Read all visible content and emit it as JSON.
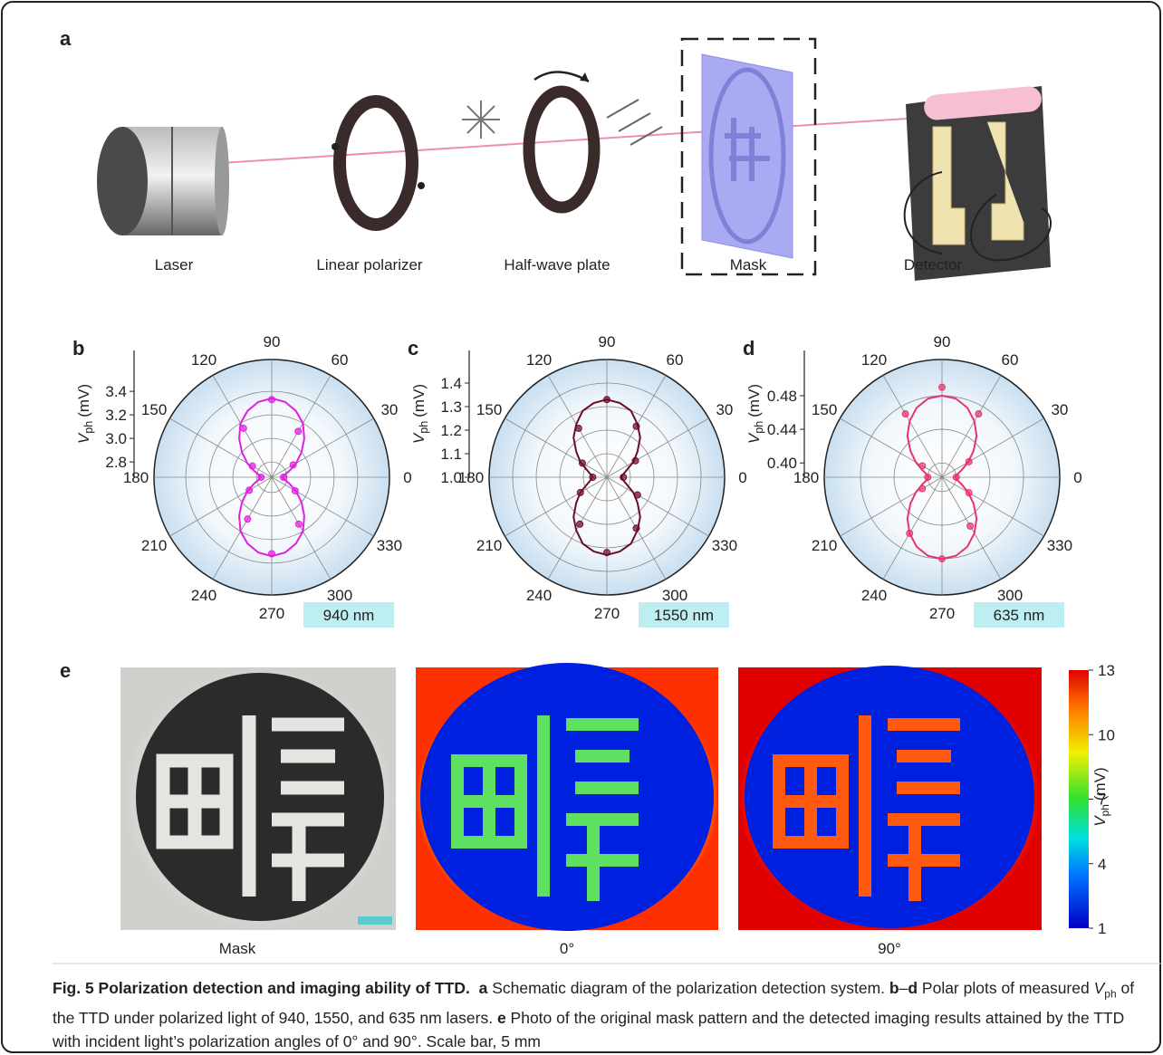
{
  "panel_labels": {
    "a": "a",
    "e": "e"
  },
  "schematic": {
    "labels": [
      "Laser",
      "Linear polarizer",
      "Half-wave plate",
      "Mask",
      "Detector"
    ]
  },
  "chart_data": [
    {
      "type": "polar",
      "panel": "b",
      "color": "#e020e0",
      "wavelength_label": "940 nm",
      "ylabel": {
        "symbol": "V",
        "sub": "ph",
        "unit": "(mV)"
      },
      "rlim": [
        2.67,
        3.67
      ],
      "rticks": [
        2.8,
        {
          "value": 3,
          "label": "3.0"
        },
        3.2,
        3.4
      ],
      "thetaticks": [
        0,
        30,
        60,
        90,
        120,
        150,
        180,
        210,
        240,
        270,
        300,
        330
      ],
      "points": {
        "theta": [
          0,
          30,
          60,
          90,
          120,
          150,
          180,
          210,
          240,
          270,
          300,
          330
        ],
        "values": [
          2.77,
          2.88,
          3.12,
          3.33,
          3.15,
          2.86,
          2.76,
          2.89,
          3.08,
          3.32,
          3.13,
          2.9
        ]
      },
      "fit": {
        "theta": [
          0,
          10,
          20,
          30,
          40,
          50,
          60,
          70,
          80,
          90,
          100,
          110,
          120,
          130,
          140,
          150,
          160,
          170,
          180,
          190,
          200,
          210,
          220,
          230,
          240,
          250,
          260,
          270,
          280,
          290,
          300,
          310,
          320,
          330,
          340,
          350
        ],
        "values": [
          2.76,
          2.78,
          2.83,
          2.91,
          3.0,
          3.1,
          3.2,
          3.27,
          3.32,
          3.34,
          3.32,
          3.27,
          3.2,
          3.1,
          3.0,
          2.91,
          2.83,
          2.78,
          2.76,
          2.78,
          2.83,
          2.91,
          3.0,
          3.1,
          3.2,
          3.27,
          3.32,
          3.34,
          3.32,
          3.27,
          3.2,
          3.1,
          3.0,
          2.91,
          2.83,
          2.78
        ]
      }
    },
    {
      "type": "polar",
      "panel": "c",
      "color": "#6b0d2a",
      "wavelength_label": "1550 nm",
      "ylabel": {
        "symbol": "V",
        "sub": "ph",
        "unit": "(mV)"
      },
      "rlim": [
        1.0,
        1.5
      ],
      "rticks": [
        {
          "value": 1,
          "label": "1.0"
        },
        1.1,
        1.2,
        1.3,
        1.4
      ],
      "thetaticks": [
        0,
        30,
        60,
        90,
        120,
        150,
        180,
        210,
        240,
        270,
        300,
        330
      ],
      "points": {
        "theta": [
          0,
          30,
          60,
          90,
          120,
          150,
          180,
          210,
          240,
          270,
          300,
          330
        ],
        "values": [
          1.07,
          1.14,
          1.25,
          1.33,
          1.24,
          1.12,
          1.06,
          1.13,
          1.23,
          1.32,
          1.25,
          1.15
        ]
      },
      "fit": {
        "theta": [
          0,
          10,
          20,
          30,
          40,
          50,
          60,
          70,
          80,
          90,
          100,
          110,
          120,
          130,
          140,
          150,
          160,
          170,
          180,
          190,
          200,
          210,
          220,
          230,
          240,
          250,
          260,
          270,
          280,
          290,
          300,
          310,
          320,
          330,
          340,
          350
        ],
        "values": [
          1.06,
          1.07,
          1.09,
          1.13,
          1.17,
          1.22,
          1.26,
          1.3,
          1.32,
          1.33,
          1.32,
          1.3,
          1.26,
          1.22,
          1.17,
          1.13,
          1.09,
          1.07,
          1.06,
          1.07,
          1.09,
          1.13,
          1.17,
          1.22,
          1.26,
          1.3,
          1.32,
          1.33,
          1.32,
          1.3,
          1.26,
          1.22,
          1.17,
          1.13,
          1.09,
          1.07
        ]
      }
    },
    {
      "type": "polar",
      "panel": "d",
      "color": "#e8336e",
      "wavelength_label": "635 nm",
      "ylabel": {
        "symbol": "V",
        "sub": "ph",
        "unit": "(mV)"
      },
      "rlim": [
        0.383,
        0.523
      ],
      "rticks": [
        {
          "value": 0.4,
          "label": "0.40"
        },
        0.44,
        0.48
      ],
      "thetaticks": [
        0,
        30,
        60,
        90,
        120,
        150,
        180,
        210,
        240,
        270,
        300,
        330
      ],
      "points": {
        "theta": [
          0,
          30,
          60,
          90,
          120,
          150,
          180,
          210,
          240,
          270,
          300,
          330
        ],
        "values": [
          0.4,
          0.42,
          0.47,
          0.49,
          0.47,
          0.41,
          0.4,
          0.41,
          0.46,
          0.48,
          0.45,
          0.42
        ]
      },
      "fit": {
        "theta": [
          0,
          10,
          20,
          30,
          40,
          50,
          60,
          70,
          80,
          90,
          100,
          110,
          120,
          130,
          140,
          150,
          160,
          170,
          180,
          190,
          200,
          210,
          220,
          230,
          240,
          250,
          260,
          270,
          280,
          290,
          300,
          310,
          320,
          330,
          340,
          350
        ],
        "values": [
          0.399,
          0.401,
          0.408,
          0.419,
          0.432,
          0.447,
          0.46,
          0.471,
          0.478,
          0.48,
          0.478,
          0.471,
          0.46,
          0.447,
          0.432,
          0.419,
          0.408,
          0.401,
          0.399,
          0.401,
          0.408,
          0.419,
          0.432,
          0.447,
          0.46,
          0.471,
          0.478,
          0.48,
          0.478,
          0.471,
          0.46,
          0.447,
          0.432,
          0.419,
          0.408,
          0.401
        ]
      }
    }
  ],
  "imaging": {
    "labels": [
      "Mask",
      "0°",
      "90°"
    ],
    "colorbar": {
      "lim": [
        1,
        13
      ],
      "ticks": [
        1,
        4,
        7,
        10,
        13
      ],
      "label": {
        "symbol": "V",
        "sub": "ph",
        "unit": "(mV)"
      }
    }
  },
  "caption": {
    "runs": [
      {
        "text": "Fig. 5 Polarization detection and imaging ability of TTD.",
        "style": "bold"
      },
      {
        "text": "  ",
        "style": "normal"
      },
      {
        "text": "a",
        "style": "bold"
      },
      {
        "text": " Schematic diagram of the polarization detection system. ",
        "style": "normal"
      },
      {
        "text": "b",
        "style": "bold"
      },
      {
        "text": "–",
        "style": "normal"
      },
      {
        "text": "d",
        "style": "bold"
      },
      {
        "text": " Polar plots of measured ",
        "style": "normal"
      },
      {
        "text": "V",
        "style": "italic"
      },
      {
        "text": "ph",
        "style": "sub"
      },
      {
        "text": " of the TTD under polarized light of 940, 1550, and 635 nm lasers. ",
        "style": "normal"
      },
      {
        "text": "e",
        "style": "bold"
      },
      {
        "text": " Photo of the original mask pattern and the detected imaging results attained by the TTD with incident light’s polarization angles of 0° and 90°. Scale bar, 5 mm",
        "style": "normal"
      }
    ]
  }
}
